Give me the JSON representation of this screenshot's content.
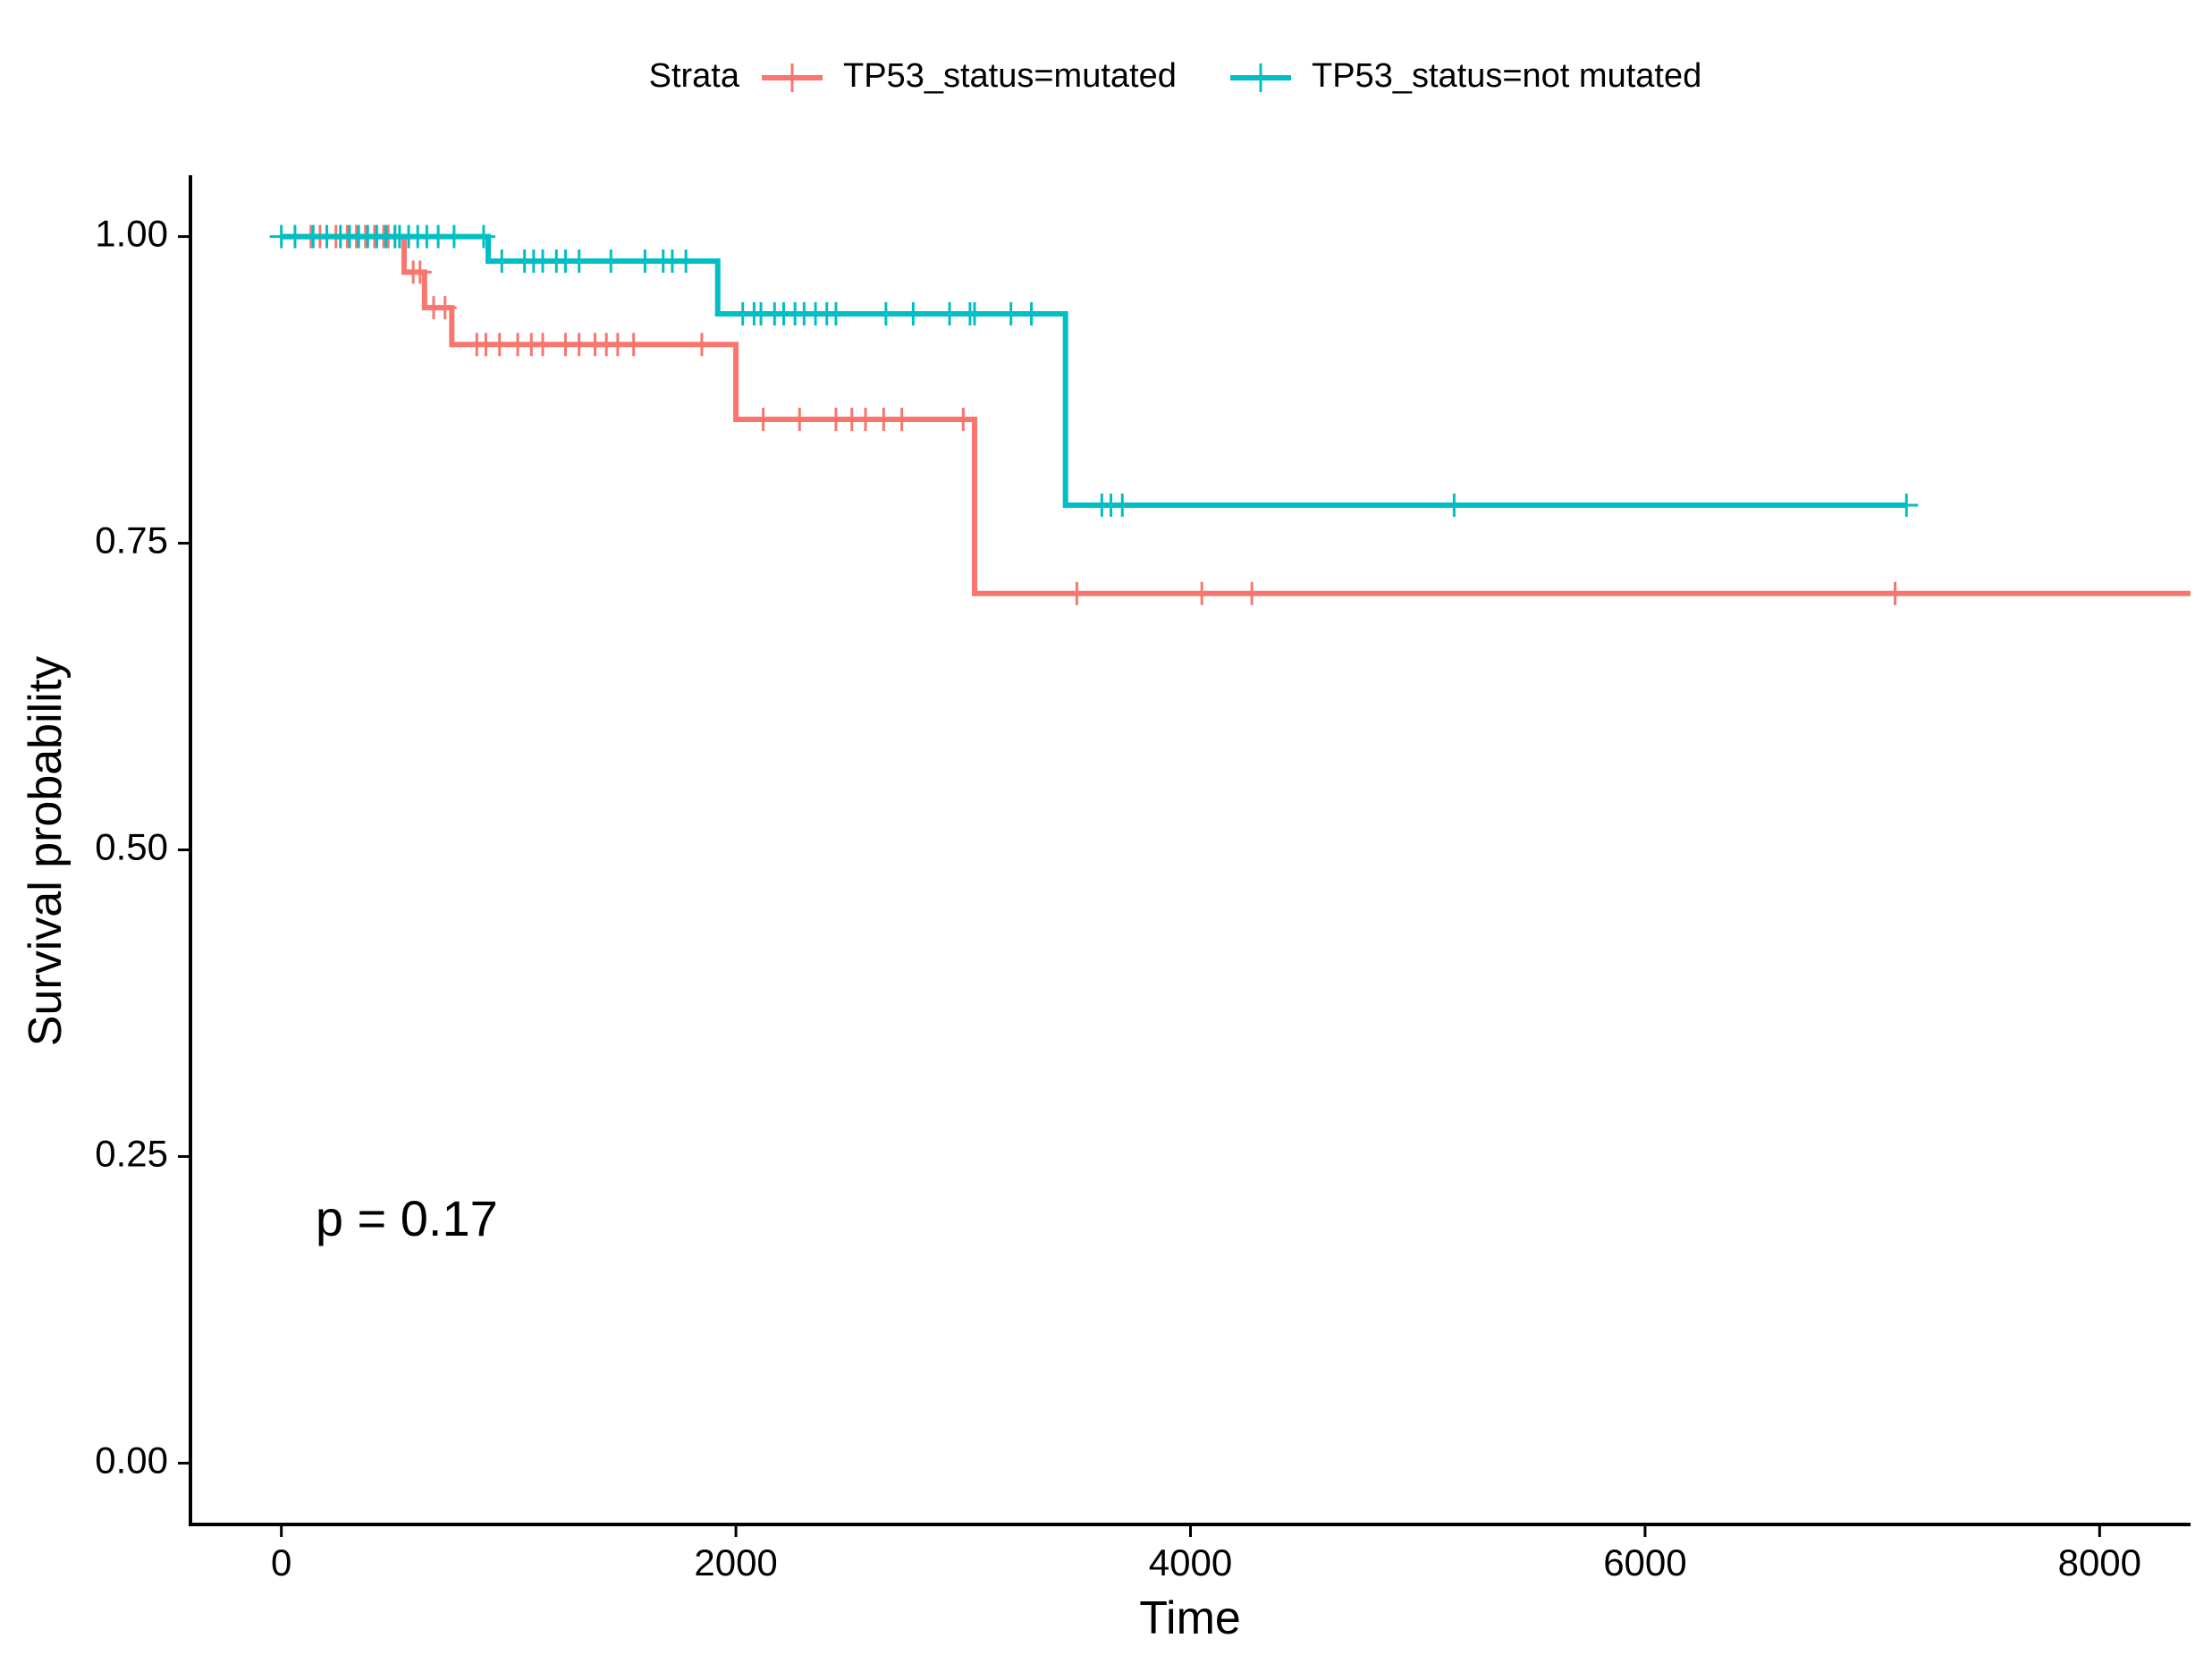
{
  "chart_data": {
    "type": "line",
    "subtype": "kaplan-meier step",
    "title": "",
    "xlabel": "Time",
    "ylabel": "Survival probability",
    "xlim": [
      -400,
      8400
    ],
    "ylim": [
      -0.05,
      1.05
    ],
    "x_ticks": [
      0,
      2000,
      4000,
      6000,
      8000
    ],
    "x_tick_labels": [
      "0",
      "2000",
      "4000",
      "6000",
      "8000"
    ],
    "y_ticks": [
      0,
      0.25,
      0.5,
      0.75,
      1.0
    ],
    "y_tick_labels": [
      "0.00",
      "0.25",
      "0.50",
      "0.75",
      "1.00"
    ],
    "grid": false,
    "legend": {
      "position": "top",
      "title": "Strata",
      "entries": [
        "TP53_status=mutated",
        "TP53_status=not mutated"
      ]
    },
    "annotation": {
      "text": "p = 0.17",
      "x": 150,
      "y": 0.2
    },
    "series": [
      {
        "name": "TP53_status=mutated",
        "color": "#F8766D",
        "steps": [
          [
            0,
            1.0
          ],
          [
            540,
            0.971
          ],
          [
            630,
            0.942
          ],
          [
            750,
            0.912
          ],
          [
            2000,
            0.851
          ],
          [
            3050,
            0.709
          ],
          [
            8400,
            0.709
          ]
        ],
        "censor_times": [
          130,
          170,
          240,
          290,
          330,
          370,
          410,
          450,
          470,
          500,
          580,
          610,
          670,
          720,
          860,
          900,
          960,
          1040,
          1100,
          1150,
          1250,
          1310,
          1380,
          1430,
          1480,
          1550,
          1850,
          2120,
          2280,
          2440,
          2510,
          2570,
          2650,
          2730,
          3000,
          3500,
          4050,
          4270,
          7100
        ]
      },
      {
        "name": "TP53_status=not mutated",
        "color": "#00BFC4",
        "steps": [
          [
            0,
            1.0
          ],
          [
            910,
            0.98
          ],
          [
            1920,
            0.937
          ],
          [
            3450,
            0.781
          ],
          [
            7150,
            0.781
          ]
        ],
        "censor_times": [
          0,
          60,
          140,
          200,
          260,
          300,
          340,
          380,
          420,
          460,
          500,
          520,
          560,
          600,
          640,
          690,
          760,
          890,
          970,
          1070,
          1110,
          1150,
          1210,
          1250,
          1310,
          1450,
          1600,
          1680,
          1720,
          1780,
          2030,
          2080,
          2110,
          2170,
          2210,
          2260,
          2300,
          2350,
          2400,
          2440,
          2660,
          2780,
          2940,
          3030,
          3050,
          3210,
          3300,
          3610,
          3650,
          3700,
          5160,
          7150
        ]
      }
    ]
  }
}
